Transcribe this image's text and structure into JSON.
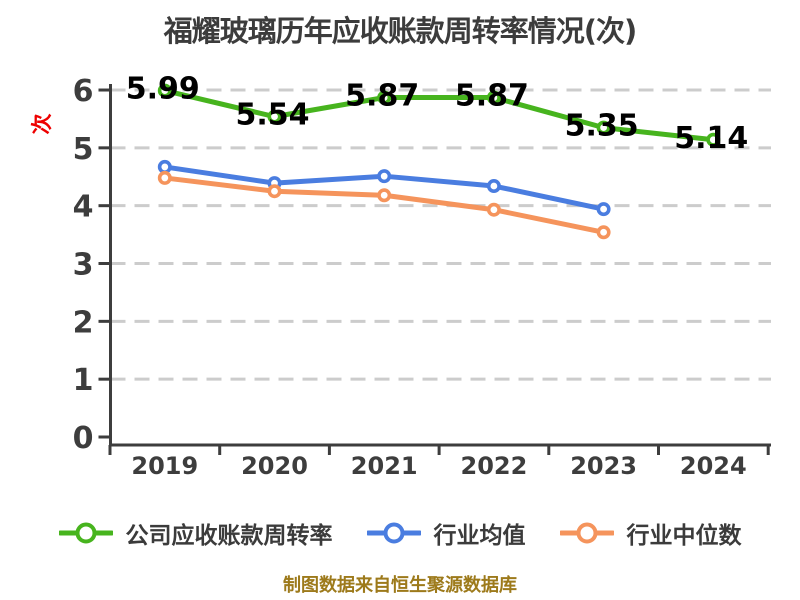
{
  "title": "福耀玻璃历年应收账款周转率情况(次)",
  "footer": "制图数据来自恒生聚源数据库",
  "colors": {
    "title_text": "#3c3c3c",
    "axis_text": "#3d3d3d",
    "grid_line": "#cccccc",
    "data_label": "#000000",
    "ylabel_red": "#ee0000",
    "footer_gold": "#9d7a1b",
    "background": "#ffffff"
  },
  "chart_data": {
    "type": "line",
    "title": "福耀玻璃历年应收账款周转率情况(次)",
    "categories": [
      "2019",
      "2020",
      "2021",
      "2022",
      "2023",
      "2024"
    ],
    "series": [
      {
        "name": "公司应收账款周转率",
        "color": "#47b41e",
        "values": [
          5.99,
          5.54,
          5.87,
          5.87,
          5.35,
          5.14
        ],
        "point_labels": [
          "5.99",
          "5.54",
          "5.87",
          "5.87",
          "5.35",
          "5.14"
        ]
      },
      {
        "name": "行业均值",
        "color": "#4a7de0",
        "values": [
          4.67,
          4.39,
          4.51,
          4.34,
          3.94,
          null
        ],
        "point_labels": null
      },
      {
        "name": "行业中位数",
        "color": "#f5945c",
        "values": [
          4.48,
          4.25,
          4.18,
          3.93,
          3.54,
          null
        ],
        "point_labels": null
      }
    ],
    "xlabel": "",
    "ylabel": "次",
    "ylim": [
      0,
      6
    ],
    "yticks": [
      0,
      1,
      2,
      3,
      4,
      5,
      6
    ],
    "grid": "horizontal-dashed",
    "legend_position": "bottom"
  }
}
